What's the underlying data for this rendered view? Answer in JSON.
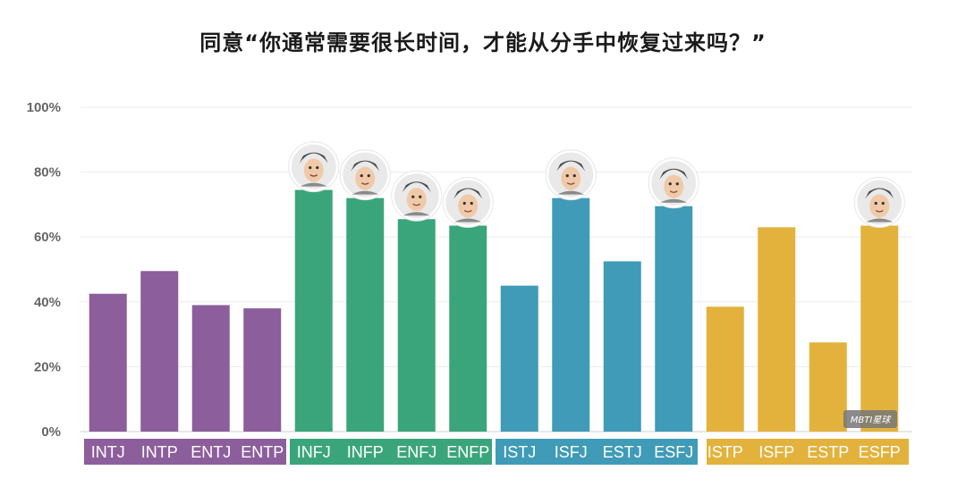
{
  "chart_data": {
    "type": "bar",
    "title": "同意“你通常需要很长时间，才能从分手中恢复过来吗？”",
    "yticks": [
      "0%",
      "20%",
      "40%",
      "60%",
      "80%",
      "100%"
    ],
    "ylim": [
      0,
      100
    ],
    "grid": true,
    "categories": [
      "INTJ",
      "INTP",
      "ENTJ",
      "ENTP",
      "INFJ",
      "INFP",
      "ENFJ",
      "ENFP",
      "ISTJ",
      "ISFJ",
      "ESTJ",
      "ESFJ",
      "ISTP",
      "ISFP",
      "ESTP",
      "ESFP"
    ],
    "values": [
      42.5,
      49.5,
      39,
      38,
      74.5,
      72,
      65.5,
      63.5,
      45,
      72,
      52.5,
      69.5,
      38.5,
      63,
      27.5,
      63.5
    ],
    "groups": [
      {
        "color": "#8c5e9c",
        "members": [
          "INTJ",
          "INTP",
          "ENTJ",
          "ENTP"
        ]
      },
      {
        "color": "#3aa57a",
        "members": [
          "INFJ",
          "INFP",
          "ENFJ",
          "ENFP"
        ]
      },
      {
        "color": "#3f9bb7",
        "members": [
          "ISTJ",
          "ISFJ",
          "ESTJ",
          "ESFJ"
        ]
      },
      {
        "color": "#e3b23c",
        "members": [
          "ISTP",
          "ISFP",
          "ESTP",
          "ESFP"
        ]
      }
    ],
    "avatars": [
      "INFJ",
      "INFP",
      "ENFJ",
      "ENFP",
      "ISFJ",
      "ESFJ",
      "ESFP"
    ]
  },
  "watermark": "MBTI星球"
}
